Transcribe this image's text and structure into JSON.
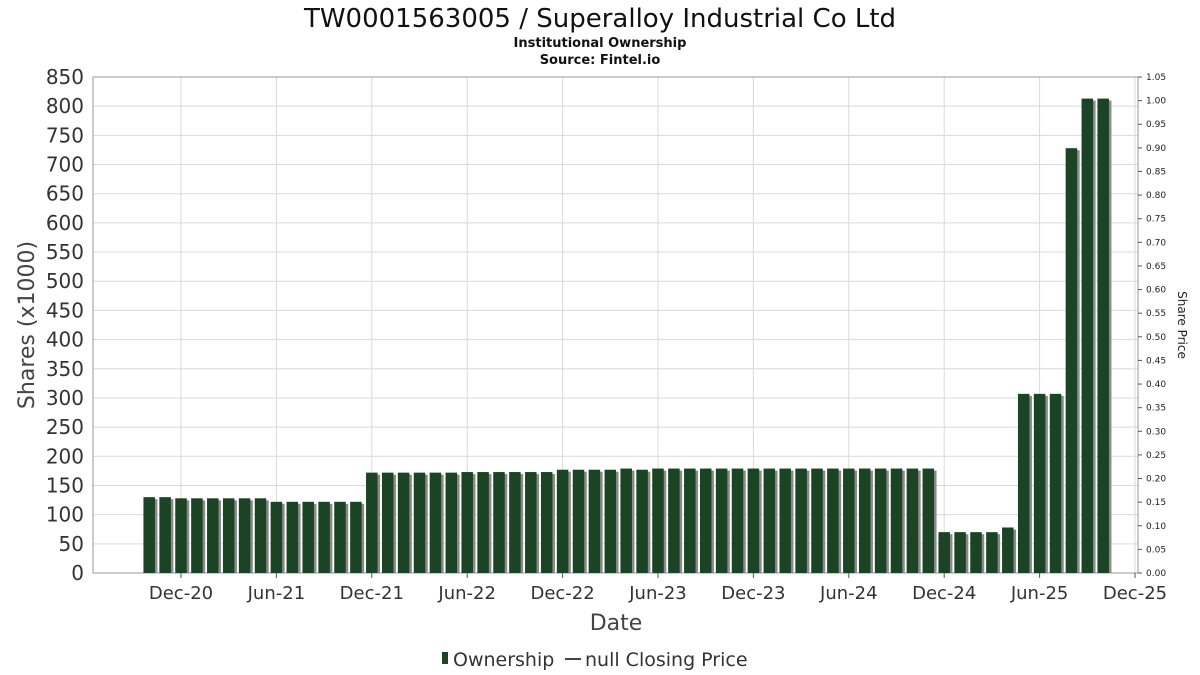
{
  "chart_data": {
    "type": "bar",
    "title": "TW0001563005 / Superalloy Industrial Co Ltd",
    "subtitle": "Institutional Ownership",
    "source": "Source: Fintel.io",
    "xlabel": "Date",
    "ylabel": "Shares (x1000)",
    "ylabel_right": "Share Price",
    "ylim": [
      0,
      850
    ],
    "yticks": [
      0,
      50,
      100,
      150,
      200,
      250,
      300,
      350,
      400,
      450,
      500,
      550,
      600,
      650,
      700,
      750,
      800,
      850
    ],
    "ylim_right": [
      0,
      1.05
    ],
    "yticks_right": [
      "0.00",
      "0.05",
      "0.10",
      "0.15",
      "0.20",
      "0.25",
      "0.30",
      "0.35",
      "0.40",
      "0.45",
      "0.50",
      "0.55",
      "0.60",
      "0.65",
      "0.70",
      "0.75",
      "0.80",
      "0.85",
      "0.90",
      "0.95",
      "1.00",
      "1.05"
    ],
    "xticks": [
      "Dec-20",
      "Jun-21",
      "Dec-21",
      "Jun-22",
      "Dec-22",
      "Jun-23",
      "Dec-23",
      "Jun-24",
      "Dec-24",
      "Jun-25",
      "Dec-25"
    ],
    "grid": true,
    "legend_position": "bottom",
    "legend": {
      "ownership": "Ownership",
      "closing_price": "null Closing Price"
    },
    "colors": {
      "bar": "#1b4424",
      "bar_shadow": "#8a8a8a",
      "grid": "#d9d9d9"
    },
    "series": [
      {
        "name": "Ownership",
        "values": [
          130,
          130,
          128,
          128,
          128,
          128,
          128,
          128,
          122,
          122,
          122,
          122,
          122,
          122,
          172,
          172,
          172,
          172,
          172,
          172,
          173,
          173,
          173,
          173,
          173,
          173,
          177,
          177,
          177,
          177,
          179,
          177,
          179,
          179,
          179,
          179,
          179,
          179,
          179,
          179,
          179,
          179,
          179,
          179,
          179,
          179,
          179,
          179,
          179,
          179,
          70,
          70,
          70,
          70,
          78,
          307,
          307,
          307,
          728,
          813,
          813
        ]
      }
    ]
  }
}
